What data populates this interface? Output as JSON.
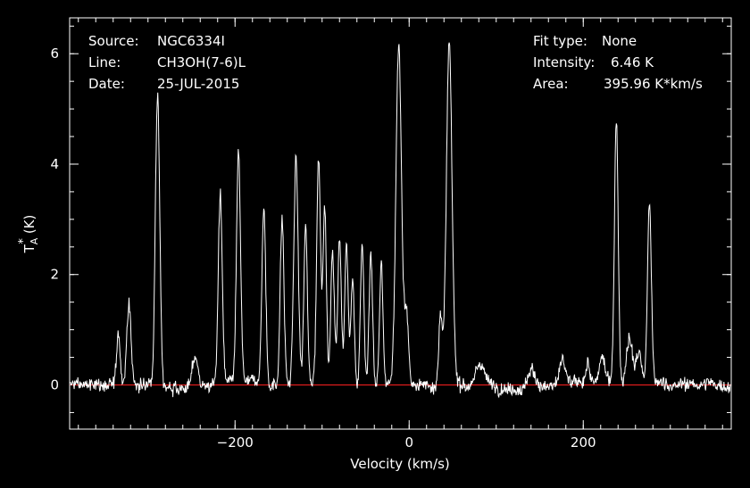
{
  "info_left": [
    {
      "key": "Source:",
      "value": "NGC6334I"
    },
    {
      "key": "Line:",
      "value": "CH3OH(7-6)L"
    },
    {
      "key": "Date:",
      "value": "25-JUL-2015"
    }
  ],
  "info_right": [
    {
      "key": "Fit type:",
      "value": "None"
    },
    {
      "key": "Intensity:",
      "value": "6.46 K"
    },
    {
      "key": "Area:",
      "value": "395.96 K*km/s"
    }
  ],
  "chart_data": {
    "type": "line",
    "xlabel": "Velocity (km/s)",
    "ylabel_main": "T",
    "ylabel_sub": "A",
    "ylabel_sup": "*",
    "ylabel_unit": "(K)",
    "xlim": [
      -390,
      370
    ],
    "ylim": [
      -0.8,
      6.65
    ],
    "xticks_major": [
      -200,
      0,
      200
    ],
    "yticks_major": [
      0,
      2,
      4,
      6
    ],
    "x_minor_step": 20,
    "y_minor_step": 0.5,
    "baseline": 0,
    "colors": {
      "axes": "#ffffff",
      "spectrum": "#ffffff",
      "baseline": "#ff2020",
      "background": "#000000"
    },
    "noise_level": 0.12,
    "x_step": 0.6,
    "peaks": [
      {
        "x": -334,
        "amp": 0.9,
        "w": 2.0
      },
      {
        "x": -322,
        "amp": 1.45,
        "w": 2.5
      },
      {
        "x": -289,
        "amp": 5.35,
        "w": 2.5
      },
      {
        "x": -246,
        "amp": 0.55,
        "w": 3.0
      },
      {
        "x": -217,
        "amp": 3.45,
        "w": 2.3
      },
      {
        "x": -196,
        "amp": 4.15,
        "w": 2.3
      },
      {
        "x": -167,
        "amp": 3.2,
        "w": 2.2
      },
      {
        "x": -146,
        "amp": 3.0,
        "w": 2.2
      },
      {
        "x": -130,
        "amp": 4.1,
        "w": 2.5
      },
      {
        "x": -119,
        "amp": 2.85,
        "w": 2.0
      },
      {
        "x": -104,
        "amp": 4.15,
        "w": 2.2
      },
      {
        "x": -97,
        "amp": 3.25,
        "w": 2.0
      },
      {
        "x": -88,
        "amp": 2.45,
        "w": 2.0
      },
      {
        "x": -80,
        "amp": 2.75,
        "w": 2.0
      },
      {
        "x": -72,
        "amp": 2.55,
        "w": 2.0
      },
      {
        "x": -65,
        "amp": 2.0,
        "w": 2.0
      },
      {
        "x": -54,
        "amp": 2.65,
        "w": 2.0
      },
      {
        "x": -44,
        "amp": 2.4,
        "w": 2.0
      },
      {
        "x": -32,
        "amp": 2.2,
        "w": 2.0
      },
      {
        "x": -12,
        "amp": 6.2,
        "w": 3.2
      },
      {
        "x": -3,
        "amp": 1.3,
        "w": 2.5
      },
      {
        "x": 36,
        "amp": 1.3,
        "w": 2.0
      },
      {
        "x": 46,
        "amp": 6.15,
        "w": 3.2
      },
      {
        "x": 82,
        "amp": 0.4,
        "w": 5.0
      },
      {
        "x": 140,
        "amp": 0.3,
        "w": 4.0
      },
      {
        "x": 176,
        "amp": 0.45,
        "w": 3.0
      },
      {
        "x": 205,
        "amp": 0.35,
        "w": 2.5
      },
      {
        "x": 222,
        "amp": 0.45,
        "w": 3.0
      },
      {
        "x": 238,
        "amp": 4.8,
        "w": 2.2
      },
      {
        "x": 253,
        "amp": 0.9,
        "w": 3.5
      },
      {
        "x": 264,
        "amp": 0.6,
        "w": 3.0
      },
      {
        "x": 276,
        "amp": 3.3,
        "w": 2.2
      }
    ]
  }
}
